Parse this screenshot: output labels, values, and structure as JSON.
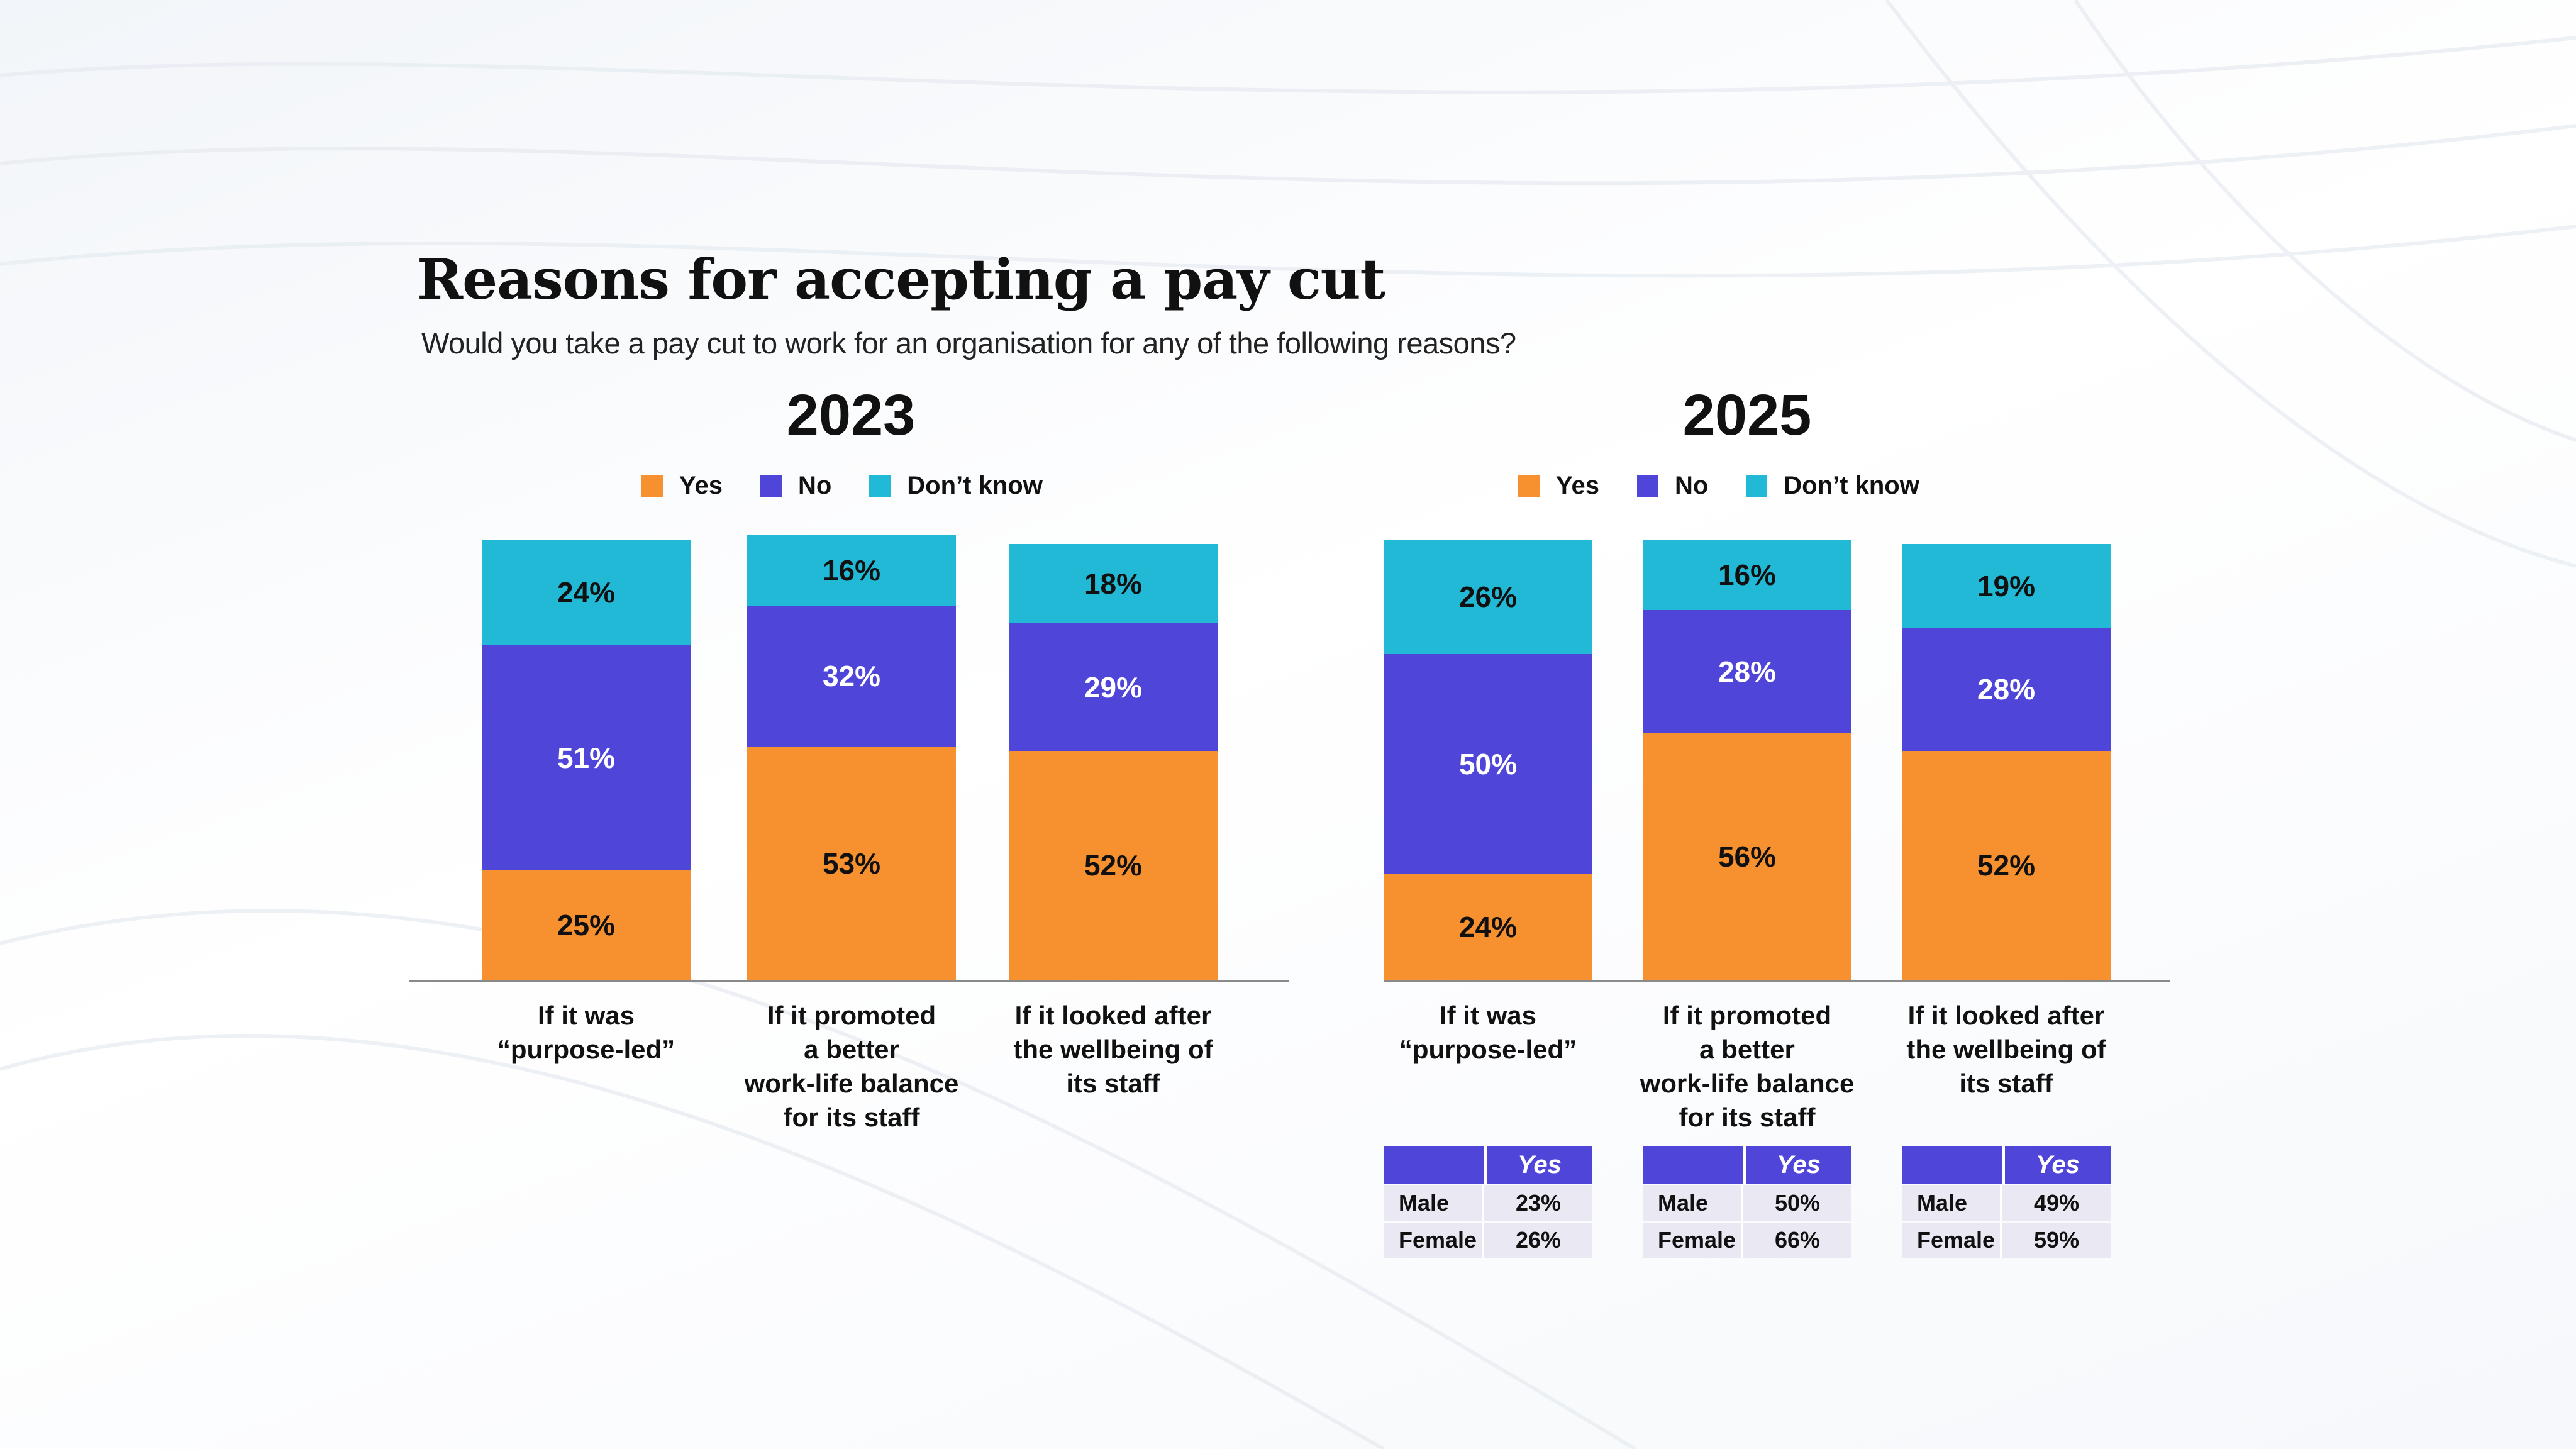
{
  "title": "Reasons for accepting a pay cut",
  "subtitle": "Would you take a pay cut to work for an organisation for any of the following reasons?",
  "colors": {
    "yes": "#f7902f",
    "no": "#4f45d8",
    "dont_know": "#22b9d6"
  },
  "chart_data": [
    {
      "type": "bar",
      "stacked": true,
      "title": "2023",
      "legend": [
        "Yes",
        "No",
        "Don’t know"
      ],
      "categories": [
        [
          "If it was",
          "“purpose-led”"
        ],
        [
          "If it promoted",
          "a better",
          "work-life balance",
          "for its staff"
        ],
        [
          "If it looked after",
          "the wellbeing of",
          "its staff"
        ]
      ],
      "series": [
        {
          "name": "Yes",
          "values": [
            25,
            53,
            52
          ],
          "labels": [
            "25%",
            "53%",
            "52%"
          ]
        },
        {
          "name": "No",
          "values": [
            51,
            32,
            29
          ],
          "labels": [
            "51%",
            "32%",
            "29%"
          ]
        },
        {
          "name": "Don’t know",
          "values": [
            24,
            16,
            18
          ],
          "labels": [
            "24%",
            "16%",
            "18%"
          ]
        }
      ],
      "ylim": [
        0,
        100
      ]
    },
    {
      "type": "bar",
      "stacked": true,
      "title": "2025",
      "legend": [
        "Yes",
        "No",
        "Don’t know"
      ],
      "categories": [
        [
          "If it was",
          "“purpose-led”"
        ],
        [
          "If it promoted",
          "a better",
          "work-life balance",
          "for its staff"
        ],
        [
          "If it looked after",
          "the wellbeing of",
          "its staff"
        ]
      ],
      "series": [
        {
          "name": "Yes",
          "values": [
            24,
            56,
            52
          ],
          "labels": [
            "24%",
            "56%",
            "52%"
          ]
        },
        {
          "name": "No",
          "values": [
            50,
            28,
            28
          ],
          "labels": [
            "50%",
            "28%",
            "28%"
          ]
        },
        {
          "name": "Don’t know",
          "values": [
            26,
            16,
            19
          ],
          "labels": [
            "26%",
            "16%",
            "19%"
          ]
        }
      ],
      "ylim": [
        0,
        100
      ],
      "gender_tables": [
        {
          "header": "Yes",
          "rows": [
            {
              "label": "Male",
              "value": "23%"
            },
            {
              "label": "Female",
              "value": "26%"
            }
          ]
        },
        {
          "header": "Yes",
          "rows": [
            {
              "label": "Male",
              "value": "50%"
            },
            {
              "label": "Female",
              "value": "66%"
            }
          ]
        },
        {
          "header": "Yes",
          "rows": [
            {
              "label": "Male",
              "value": "49%"
            },
            {
              "label": "Female",
              "value": "59%"
            }
          ]
        }
      ]
    }
  ]
}
